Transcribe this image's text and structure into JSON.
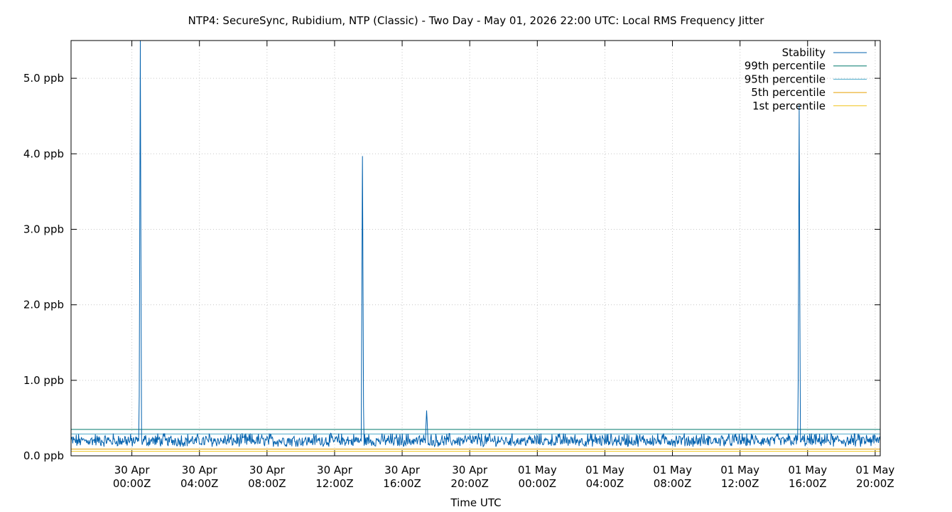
{
  "chart_data": {
    "type": "line",
    "title": "NTP4: SecureSync, Rubidium, NTP (Classic) - Two Day - May 01, 2026 22:00 UTC: Local RMS Frequency Jitter",
    "xlabel": "Time UTC",
    "ylabel": "",
    "x_range_hours": [
      -3.6,
      44.3
    ],
    "ylim": [
      0,
      5.5
    ],
    "grid": true,
    "legend_position": "top-right",
    "y_ticks": [
      {
        "value": 0,
        "label": "0.0 ppb"
      },
      {
        "value": 1,
        "label": "1.0 ppb"
      },
      {
        "value": 2,
        "label": "2.0 ppb"
      },
      {
        "value": 3,
        "label": "3.0 ppb"
      },
      {
        "value": 4,
        "label": "4.0 ppb"
      },
      {
        "value": 5,
        "label": "5.0 ppb"
      }
    ],
    "x_ticks": [
      {
        "hour": 0,
        "line1": "30 Apr",
        "line2": "00:00Z"
      },
      {
        "hour": 4,
        "line1": "30 Apr",
        "line2": "04:00Z"
      },
      {
        "hour": 8,
        "line1": "30 Apr",
        "line2": "08:00Z"
      },
      {
        "hour": 12,
        "line1": "30 Apr",
        "line2": "12:00Z"
      },
      {
        "hour": 16,
        "line1": "30 Apr",
        "line2": "16:00Z"
      },
      {
        "hour": 20,
        "line1": "30 Apr",
        "line2": "20:00Z"
      },
      {
        "hour": 24,
        "line1": "01 May",
        "line2": "00:00Z"
      },
      {
        "hour": 28,
        "line1": "01 May",
        "line2": "04:00Z"
      },
      {
        "hour": 32,
        "line1": "01 May",
        "line2": "08:00Z"
      },
      {
        "hour": 36,
        "line1": "01 May",
        "line2": "12:00Z"
      },
      {
        "hour": 40,
        "line1": "01 May",
        "line2": "16:00Z"
      },
      {
        "hour": 44,
        "line1": "01 May",
        "line2": "20:00Z"
      }
    ],
    "series": [
      {
        "name": "Stability",
        "color": "#0060ad",
        "baseline_range": [
          0.05,
          0.3
        ],
        "spikes": [
          {
            "hour": 0.5,
            "value": 5.5
          },
          {
            "hour": 13.65,
            "value": 3.97
          },
          {
            "hour": 17.45,
            "value": 0.6
          },
          {
            "hour": 39.5,
            "value": 4.65
          }
        ]
      },
      {
        "name": "99th percentile",
        "color": "#00796b",
        "value": 0.35
      },
      {
        "name": "95th percentile",
        "color": "#4aa9c9",
        "value": 0.29
      },
      {
        "name": "5th percentile",
        "color": "#e69f00",
        "value": 0.09
      },
      {
        "name": "1st percentile",
        "color": "#f0c419",
        "value": 0.06
      }
    ]
  }
}
